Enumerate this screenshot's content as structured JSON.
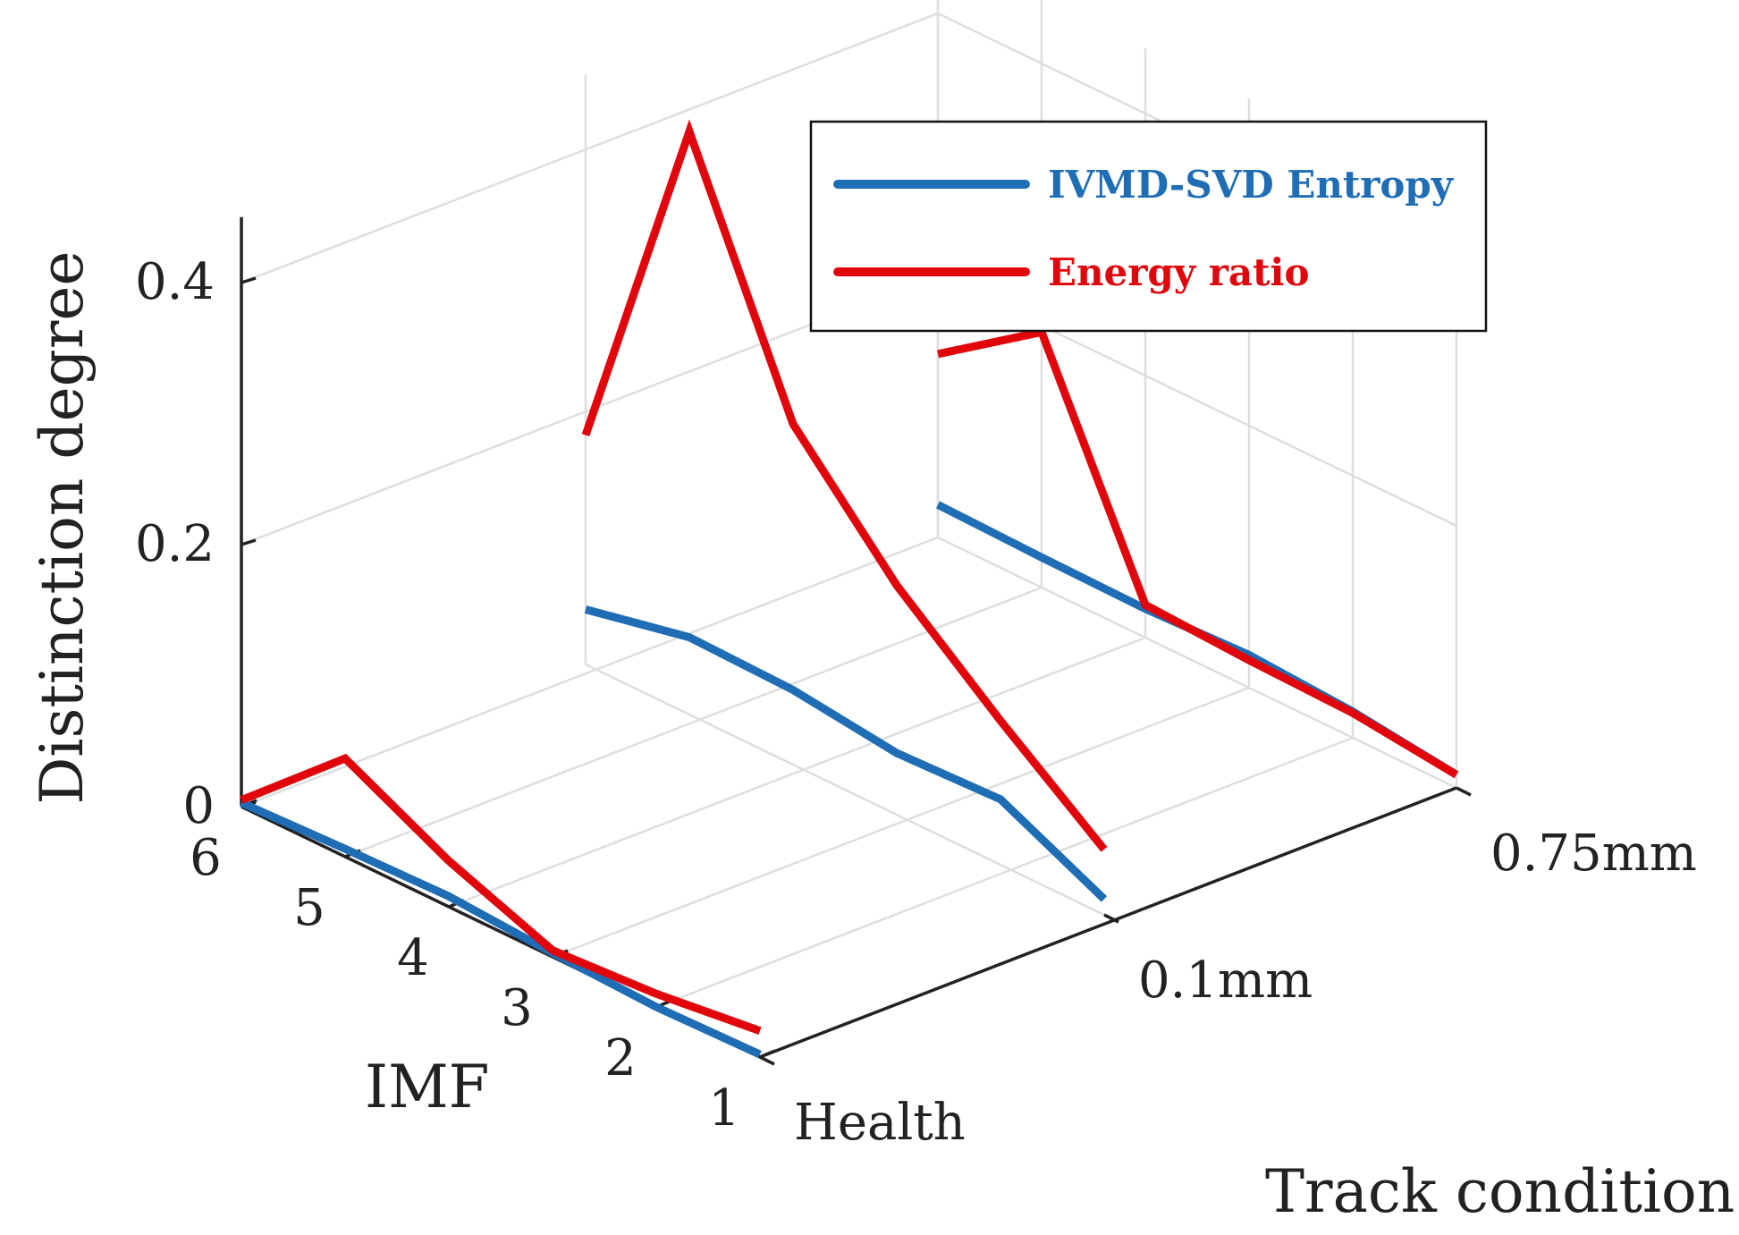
{
  "chart_data": {
    "type": "line",
    "variant": "3d-waterfall",
    "zlabel": "Distinction degree",
    "xlabel": "IMF",
    "ylabel": "Track condition",
    "z_ticks": [
      "0",
      "0.2",
      "0.4"
    ],
    "zlim": [
      0,
      0.45
    ],
    "imf_ticks": [
      "1",
      "2",
      "3",
      "4",
      "5",
      "6"
    ],
    "conditions": [
      "Health",
      "0.1mm",
      "0.75mm"
    ],
    "x": [
      1,
      2,
      3,
      4,
      5,
      6
    ],
    "legend": {
      "position": "top-right",
      "entries": [
        "IVMD-SVD Entropy",
        "Energy ratio"
      ]
    },
    "colors": {
      "entropy": "#1f6db5",
      "energy": "#e0060b"
    },
    "series": [
      {
        "name": "IVMD-SVD Entropy",
        "condition": "Health",
        "values": [
          0.002,
          0.0,
          0.003,
          0.008,
          0.006,
          0.003
        ]
      },
      {
        "name": "Energy ratio",
        "condition": "Health",
        "values": [
          0.02,
          0.01,
          0.005,
          0.035,
          0.075,
          0.005
        ]
      },
      {
        "name": "IVMD-SVD Entropy",
        "condition": "0.1mm",
        "values": [
          0.012,
          0.05,
          0.047,
          0.057,
          0.059,
          0.042
        ]
      },
      {
        "name": "Energy ratio",
        "condition": "0.1mm",
        "values": [
          0.05,
          0.11,
          0.175,
          0.26,
          0.445,
          0.175
        ]
      },
      {
        "name": "IVMD-SVD Entropy",
        "condition": "0.75mm",
        "values": [
          0.01,
          0.02,
          0.025,
          0.022,
          0.023,
          0.025
        ]
      },
      {
        "name": "Energy ratio",
        "condition": "0.75mm",
        "values": [
          0.01,
          0.019,
          0.021,
          0.025,
          0.195,
          0.14
        ]
      }
    ]
  }
}
